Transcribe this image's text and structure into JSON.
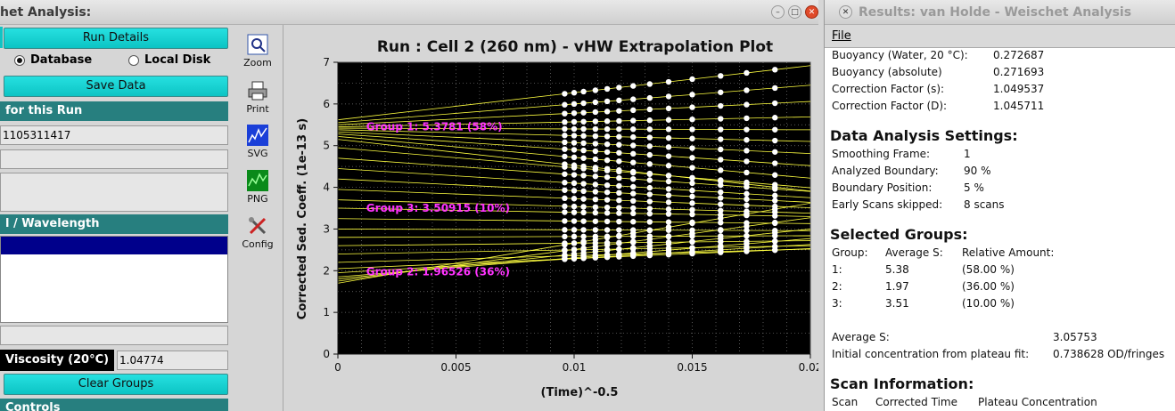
{
  "left_window": {
    "title": "het Analysis:",
    "run_details_label": "Run Details",
    "radio_database": "Database",
    "radio_local_disk": "Local Disk",
    "save_data_label": "Save Data",
    "section_run": "for this Run",
    "run_id": "1105311417",
    "section_cell": "l / Wavelength",
    "viscosity_label": "Viscosity (20°C)",
    "viscosity_value": "1.04774",
    "clear_groups_label": "Clear Groups",
    "section_controls": "Controls"
  },
  "toolbar": [
    {
      "label": "Zoom",
      "icon": "zoom-icon"
    },
    {
      "label": "Print",
      "icon": "printer-icon"
    },
    {
      "label": "SVG",
      "icon": "svg-icon"
    },
    {
      "label": "PNG",
      "icon": "png-icon"
    },
    {
      "label": "Config",
      "icon": "config-icon"
    }
  ],
  "chart_data": {
    "type": "line",
    "title": "Run : Cell 2 (260 nm) - vHW Extrapolation Plot",
    "xlabel": "(Time)^-0.5",
    "ylabel": "Corrected Sed. Coeff. (1e-13 s)",
    "xlim": [
      0,
      0.02
    ],
    "ylim": [
      0,
      7
    ],
    "xticks": [
      "0",
      "0.005",
      "0.01",
      "0.015",
      "0.02"
    ],
    "yticks": [
      "0",
      "1",
      "2",
      "3",
      "4",
      "5",
      "6",
      "7"
    ],
    "grid": true,
    "background": "#000000",
    "line_color": "#ffff40",
    "point_color": "#ffffff",
    "label_color": "#ff33ff",
    "scan_x": [
      0.0096,
      0.01,
      0.0104,
      0.0109,
      0.0114,
      0.0119,
      0.0125,
      0.0132,
      0.014,
      0.015,
      0.0162,
      0.0173,
      0.0185
    ],
    "extrapolation_lines": [
      {
        "intercept": 5.62,
        "slope": 65
      },
      {
        "intercept": 5.55,
        "slope": 45
      },
      {
        "intercept": 5.5,
        "slope": 28
      },
      {
        "intercept": 5.45,
        "slope": 12
      },
      {
        "intercept": 5.42,
        "slope": -2
      },
      {
        "intercept": 5.38,
        "slope": -14
      },
      {
        "intercept": 5.33,
        "slope": -26
      },
      {
        "intercept": 5.28,
        "slope": -38
      },
      {
        "intercept": 5.22,
        "slope": -50
      },
      {
        "intercept": 5.15,
        "slope": -62
      },
      {
        "intercept": 4.95,
        "slope": -48
      },
      {
        "intercept": 4.7,
        "slope": -40
      },
      {
        "intercept": 4.45,
        "slope": -35
      },
      {
        "intercept": 4.2,
        "slope": -28
      },
      {
        "intercept": 3.95,
        "slope": -22
      },
      {
        "intercept": 3.7,
        "slope": -16
      },
      {
        "intercept": 3.5,
        "slope": -10
      },
      {
        "intercept": 3.25,
        "slope": -6
      },
      {
        "intercept": 3.0,
        "slope": -2
      },
      {
        "intercept": 2.8,
        "slope": 2
      },
      {
        "intercept": 2.6,
        "slope": 6
      },
      {
        "intercept": 2.4,
        "slope": 10
      },
      {
        "intercept": 2.2,
        "slope": 16
      },
      {
        "intercept": 2.05,
        "slope": 24
      },
      {
        "intercept": 1.95,
        "slope": 34
      },
      {
        "intercept": 1.85,
        "slope": 46
      },
      {
        "intercept": 1.8,
        "slope": 60
      },
      {
        "intercept": 1.75,
        "slope": 76
      },
      {
        "intercept": 1.7,
        "slope": 96
      }
    ],
    "group_labels": [
      {
        "text": "Group 1: 5.3781 (58%)",
        "x": 0.0012,
        "y": 5.45
      },
      {
        "text": "Group 3: 3.50915 (10%)",
        "x": 0.0012,
        "y": 3.5
      },
      {
        "text": "Group 2: 1.96526 (36%)",
        "x": 0.0012,
        "y": 1.97
      }
    ]
  },
  "right_window": {
    "title": "Results:  van Holde - Weischet Analysis",
    "menu_file": "File",
    "buoyancy_water_label": "Buoyancy (Water, 20 °C):",
    "buoyancy_water_value": "0.272687",
    "buoyancy_abs_label": "Buoyancy (absolute)",
    "buoyancy_abs_value": "0.271693",
    "corr_s_label": "Correction Factor (s):",
    "corr_s_value": "1.049537",
    "corr_d_label": "Correction Factor (D):",
    "corr_d_value": "1.045711",
    "data_analysis_heading": "Data Analysis Settings:",
    "smoothing_label": "Smoothing Frame:",
    "smoothing_value": "1",
    "analyzed_label": "Analyzed Boundary:",
    "analyzed_value": "90 %",
    "position_label": "Boundary Position:",
    "position_value": "5 %",
    "early_label": "Early Scans skipped:",
    "early_value": "8 scans",
    "groups_heading": "Selected Groups:",
    "groups_col_group": "Group:",
    "groups_col_avg": "Average S:",
    "groups_col_rel": "Relative Amount:",
    "groups": [
      {
        "group": "1:",
        "avg": "5.38",
        "rel": "(58.00 %)"
      },
      {
        "group": "2:",
        "avg": "1.97",
        "rel": "(36.00 %)"
      },
      {
        "group": "3:",
        "avg": "3.51",
        "rel": "(10.00 %)"
      }
    ],
    "avg_s_label": "Average S:",
    "avg_s_value": "3.05753",
    "init_conc_label": "Initial concentration from plateau fit:",
    "init_conc_value": "0.738628 OD/fringes",
    "scan_heading": "Scan Information:",
    "scan_col_scan": "Scan",
    "scan_col_time": "Corrected Time",
    "scan_col_plateau": "Plateau Concentration"
  }
}
